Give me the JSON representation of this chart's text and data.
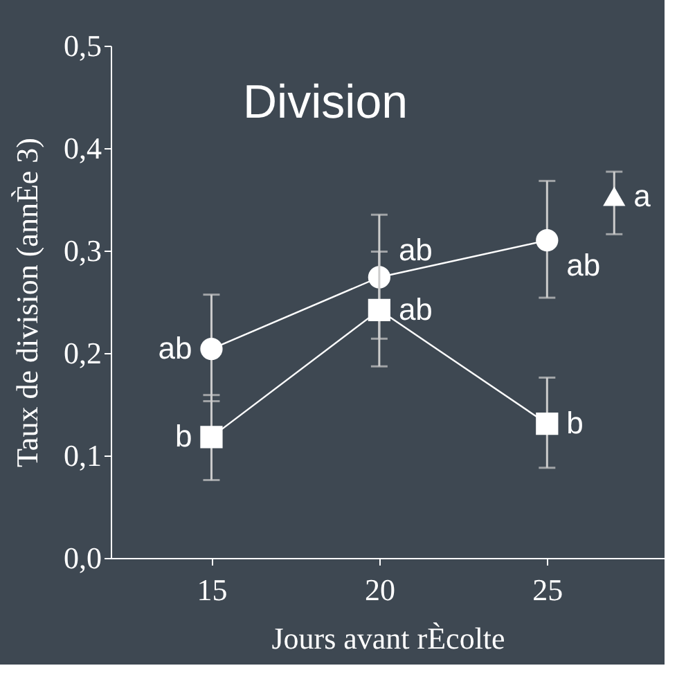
{
  "chart_data": {
    "type": "line",
    "title": "Division",
    "xlabel": "Jours avant rÈcolte",
    "ylabel": "Taux de division (annÈe 3)",
    "xlim": [
      12,
      28.5
    ],
    "xticks": [
      15,
      20,
      25
    ],
    "ylim": [
      0,
      0.5
    ],
    "yticks": [
      {
        "value": 0,
        "label": "0,0"
      },
      {
        "value": 0.1,
        "label": "0,1"
      },
      {
        "value": 0.2,
        "label": "0,2"
      },
      {
        "value": 0.3,
        "label": "0,3"
      },
      {
        "value": 0.4,
        "label": "0,4"
      },
      {
        "value": 0.5,
        "label": "0,5"
      }
    ],
    "grid": false,
    "series": [
      {
        "marker": "circle",
        "color": "#ffffff",
        "x": [
          15,
          20,
          25
        ],
        "values": [
          0.204,
          0.274,
          0.31
        ],
        "errors": [
          [
            0.153,
            0.257
          ],
          [
            0.214,
            0.335
          ],
          [
            0.254,
            0.368
          ]
        ]
      },
      {
        "marker": "square",
        "color": "#ffffff",
        "x": [
          15,
          20,
          25
        ],
        "values": [
          0.118,
          0.242,
          0.131
        ],
        "errors": [
          [
            0.076,
            0.159
          ],
          [
            0.187,
            0.299
          ],
          [
            0.088,
            0.176
          ]
        ]
      },
      {
        "type": "scatter",
        "marker": "triangle",
        "color": "#ffffff",
        "x": [
          27
        ],
        "values": [
          0.353
        ],
        "errors": [
          [
            0.316,
            0.377
          ]
        ]
      }
    ],
    "annotations": [
      {
        "text": "ab",
        "x": 15,
        "y": 0.204
      },
      {
        "text": "b",
        "x": 15,
        "y": 0.118
      },
      {
        "text": "ab",
        "x": 20,
        "y": 0.3
      },
      {
        "text": "ab",
        "x": 20,
        "y": 0.242
      },
      {
        "text": "ab",
        "x": 25,
        "y": 0.285
      },
      {
        "text": "b",
        "x": 25,
        "y": 0.131
      },
      {
        "text": "a",
        "x": 27,
        "y": 0.353
      }
    ]
  }
}
